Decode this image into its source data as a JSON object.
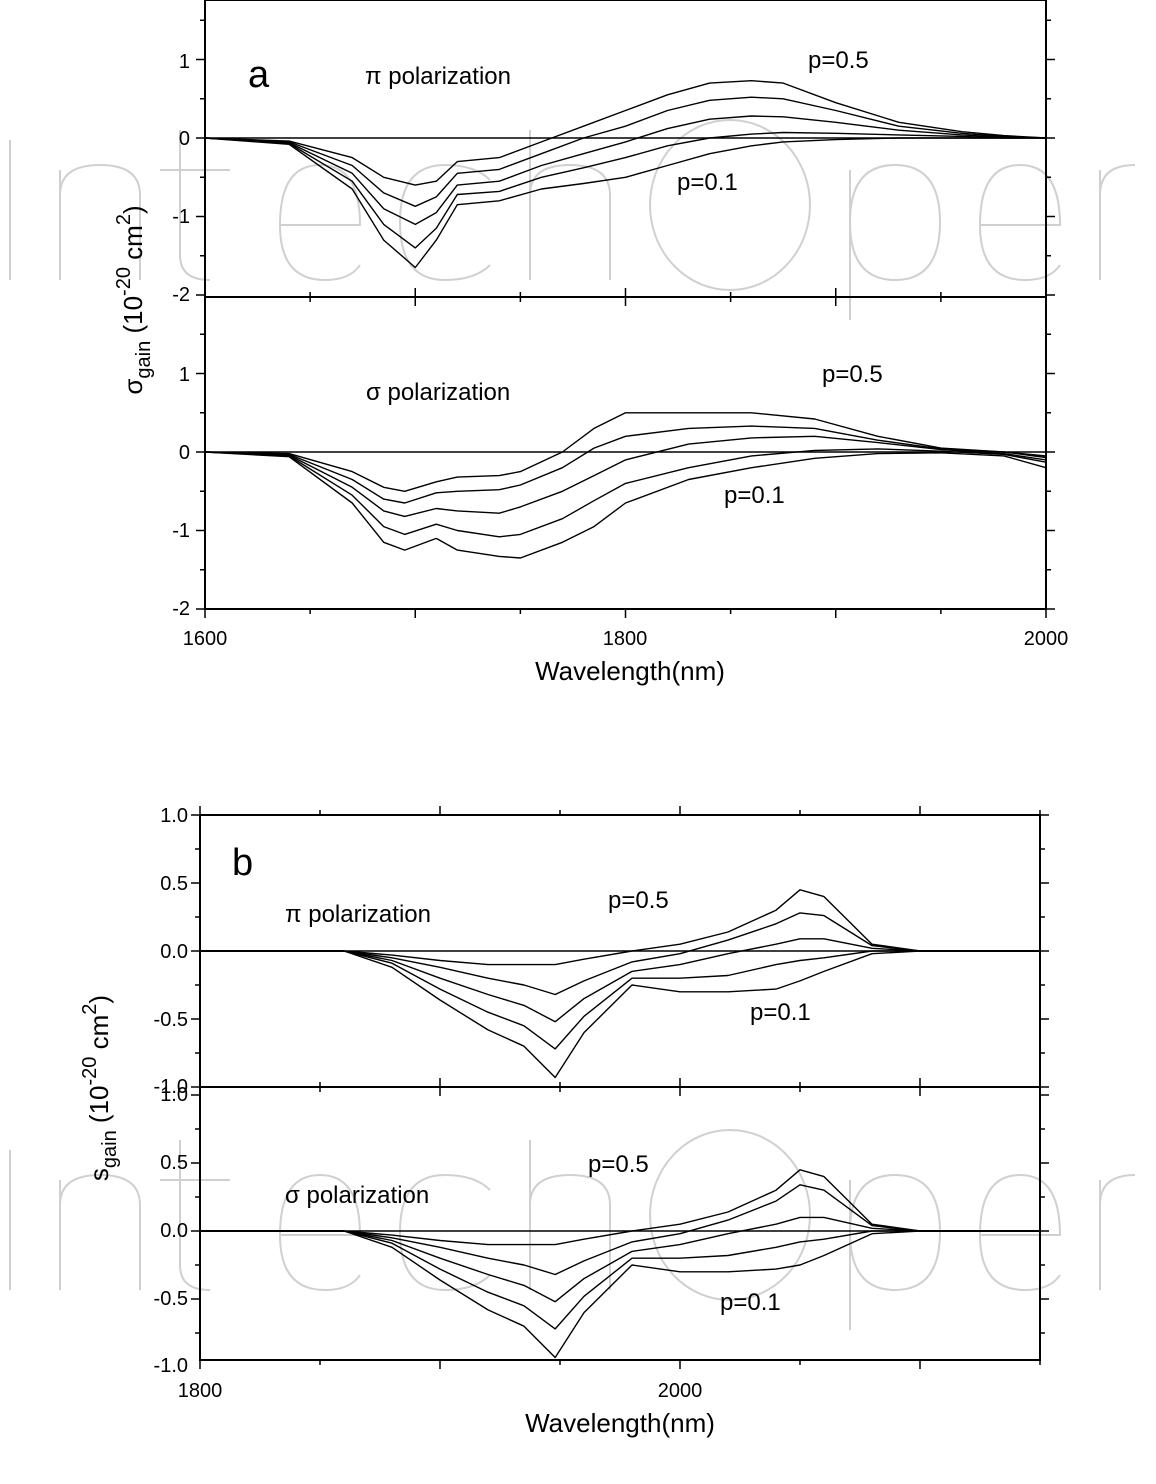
{
  "figure": {
    "watermark": "IntechOpen",
    "curve_color": "#000000"
  },
  "charts": [
    {
      "id": "a",
      "panel_letter": "a",
      "x_title": "Wavelength(nm)",
      "y_title_main": "σ",
      "y_title_sub": "gain",
      "y_title_unit": " (10",
      "y_title_exp": "-20",
      "y_title_unit2": " cm",
      "y_title_exp2": "2",
      "y_title_close": ")",
      "x_ticks": [
        "1600",
        "1800",
        "2000"
      ],
      "subplots": [
        {
          "polarization_symbol": "π",
          "polarization_label": "polarization",
          "label_top": "p=0.5",
          "label_bottom": "p=0.1",
          "y_ticks": [
            "1",
            "0",
            "-1",
            "-2"
          ]
        },
        {
          "polarization_symbol": "σ",
          "polarization_label": "polarization",
          "label_top": "p=0.5",
          "label_bottom": "p=0.1",
          "y_ticks": [
            "1",
            "0",
            "-1",
            "-2"
          ]
        }
      ]
    },
    {
      "id": "b",
      "panel_letter": "b",
      "x_title": "Wavelength(nm)",
      "y_title_main": "s",
      "y_title_sub": "gain",
      "y_title_unit": " (10",
      "y_title_exp": "-20",
      "y_title_unit2": " cm",
      "y_title_exp2": "2",
      "y_title_close": ")",
      "x_ticks": [
        "1800",
        "2000"
      ],
      "subplots": [
        {
          "polarization_symbol": "π",
          "polarization_label": "polarization",
          "label_top": "p=0.5",
          "label_bottom": "p=0.1",
          "y_ticks": [
            "1.0",
            "0.5",
            "0.0",
            "-0.5",
            "-1.0"
          ]
        },
        {
          "polarization_symbol": "σ",
          "polarization_label": "polarization",
          "label_top": "p=0.5",
          "label_bottom": "p=0.1",
          "y_ticks": [
            "1.0",
            "0.5",
            "0.0",
            "-0.5",
            "-1.0"
          ]
        }
      ]
    }
  ],
  "chart_data": [
    {
      "type": "line",
      "panel": "a",
      "subplot": "π polarization",
      "xlabel": "Wavelength(nm)",
      "ylabel": "σgain (10-20 cm2)",
      "xlim": [
        1600,
        2000
      ],
      "ylim": [
        -2,
        1.5
      ],
      "x": [
        1600,
        1640,
        1670,
        1685,
        1700,
        1710,
        1720,
        1740,
        1760,
        1780,
        1800,
        1820,
        1840,
        1860,
        1875,
        1900,
        1930,
        1960,
        1980,
        2000
      ],
      "series": [
        {
          "values": [
            0,
            -0.04,
            -0.25,
            -0.5,
            -0.6,
            -0.55,
            -0.3,
            -0.25,
            -0.05,
            0.15,
            0.35,
            0.55,
            0.7,
            0.73,
            0.7,
            0.45,
            0.2,
            0.08,
            0.03,
            0.0
          ]
        },
        {
          "values": [
            0,
            -0.05,
            -0.35,
            -0.7,
            -0.87,
            -0.75,
            -0.45,
            -0.4,
            -0.2,
            0.0,
            0.15,
            0.35,
            0.48,
            0.52,
            0.5,
            0.35,
            0.15,
            0.06,
            0.02,
            0.0
          ]
        },
        {
          "values": [
            0,
            -0.06,
            -0.45,
            -0.9,
            -1.1,
            -0.95,
            -0.6,
            -0.55,
            -0.35,
            -0.2,
            -0.05,
            0.12,
            0.24,
            0.28,
            0.27,
            0.2,
            0.1,
            0.04,
            0.01,
            0.0
          ]
        },
        {
          "values": [
            0,
            -0.07,
            -0.55,
            -1.1,
            -1.4,
            -1.15,
            -0.72,
            -0.68,
            -0.5,
            -0.38,
            -0.25,
            -0.1,
            0.0,
            0.05,
            0.07,
            0.06,
            0.04,
            0.02,
            0.0,
            0.0
          ]
        },
        {
          "values": [
            0,
            -0.08,
            -0.65,
            -1.3,
            -1.65,
            -1.3,
            -0.85,
            -0.8,
            -0.65,
            -0.58,
            -0.5,
            -0.35,
            -0.2,
            -0.1,
            -0.05,
            -0.02,
            0.0,
            0.0,
            0.0,
            0.0
          ]
        }
      ]
    },
    {
      "type": "line",
      "panel": "a",
      "subplot": "σ polarization",
      "xlabel": "Wavelength(nm)",
      "ylabel": "σgain (10-20 cm2)",
      "xlim": [
        1600,
        2000
      ],
      "ylim": [
        -2,
        1.5
      ],
      "x": [
        1600,
        1640,
        1670,
        1685,
        1695,
        1710,
        1720,
        1740,
        1750,
        1770,
        1785,
        1800,
        1830,
        1860,
        1890,
        1920,
        1950,
        1980,
        2000
      ],
      "series": [
        {
          "values": [
            0,
            -0.02,
            -0.25,
            -0.45,
            -0.5,
            -0.38,
            -0.32,
            -0.3,
            -0.25,
            0.0,
            0.3,
            0.5,
            0.5,
            0.5,
            0.42,
            0.2,
            0.05,
            0.0,
            -0.05
          ]
        },
        {
          "values": [
            0,
            -0.03,
            -0.35,
            -0.6,
            -0.65,
            -0.52,
            -0.5,
            -0.48,
            -0.42,
            -0.2,
            0.05,
            0.2,
            0.3,
            0.33,
            0.3,
            0.15,
            0.04,
            0.0,
            -0.07
          ]
        },
        {
          "values": [
            0,
            -0.04,
            -0.45,
            -0.75,
            -0.82,
            -0.72,
            -0.75,
            -0.78,
            -0.7,
            -0.5,
            -0.3,
            -0.1,
            0.1,
            0.18,
            0.2,
            0.12,
            0.03,
            -0.02,
            -0.1
          ]
        },
        {
          "values": [
            0,
            -0.05,
            -0.55,
            -0.95,
            -1.05,
            -0.92,
            -1.0,
            -1.08,
            -1.05,
            -0.85,
            -0.62,
            -0.4,
            -0.2,
            -0.05,
            0.02,
            0.04,
            0.01,
            -0.03,
            -0.13
          ]
        },
        {
          "values": [
            0,
            -0.06,
            -0.65,
            -1.15,
            -1.25,
            -1.1,
            -1.25,
            -1.33,
            -1.35,
            -1.15,
            -0.95,
            -0.65,
            -0.35,
            -0.2,
            -0.08,
            -0.02,
            -0.01,
            -0.05,
            -0.2
          ]
        }
      ]
    },
    {
      "type": "line",
      "panel": "b",
      "subplot": "π polarization",
      "xlabel": "Wavelength(nm)",
      "ylabel": "sgain (10-20 cm2)",
      "xlim": [
        1800,
        2150
      ],
      "ylim": [
        -1.0,
        1.0
      ],
      "x": [
        1800,
        1860,
        1880,
        1900,
        1920,
        1935,
        1948,
        1960,
        1980,
        2000,
        2020,
        2040,
        2050,
        2060,
        2080,
        2100,
        2150
      ],
      "series": [
        {
          "values": [
            0,
            0,
            -0.03,
            -0.07,
            -0.1,
            -0.1,
            -0.1,
            -0.06,
            0.0,
            0.05,
            0.14,
            0.3,
            0.45,
            0.4,
            0.05,
            0.0,
            0.0
          ]
        },
        {
          "values": [
            0,
            0,
            -0.05,
            -0.12,
            -0.2,
            -0.25,
            -0.32,
            -0.22,
            -0.08,
            -0.02,
            0.08,
            0.2,
            0.28,
            0.26,
            0.04,
            0.0,
            0.0
          ]
        },
        {
          "values": [
            0,
            0,
            -0.07,
            -0.2,
            -0.32,
            -0.4,
            -0.52,
            -0.35,
            -0.15,
            -0.1,
            -0.02,
            0.05,
            0.09,
            0.09,
            0.02,
            0.0,
            0.0
          ]
        },
        {
          "values": [
            0,
            0,
            -0.09,
            -0.28,
            -0.45,
            -0.55,
            -0.72,
            -0.48,
            -0.2,
            -0.2,
            -0.18,
            -0.1,
            -0.07,
            -0.05,
            0.0,
            0.0,
            0.0
          ]
        },
        {
          "values": [
            0,
            0,
            -0.12,
            -0.36,
            -0.58,
            -0.7,
            -0.93,
            -0.6,
            -0.25,
            -0.3,
            -0.3,
            -0.28,
            -0.22,
            -0.15,
            -0.02,
            0.0,
            0.0
          ]
        }
      ]
    },
    {
      "type": "line",
      "panel": "b",
      "subplot": "σ polarization",
      "xlabel": "Wavelength(nm)",
      "ylabel": "sgain (10-20 cm2)",
      "xlim": [
        1800,
        2150
      ],
      "ylim": [
        -1.0,
        1.0
      ],
      "x": [
        1800,
        1860,
        1880,
        1900,
        1920,
        1935,
        1948,
        1960,
        1980,
        2000,
        2020,
        2040,
        2050,
        2060,
        2080,
        2100,
        2150
      ],
      "series": [
        {
          "values": [
            0,
            0,
            -0.03,
            -0.07,
            -0.1,
            -0.1,
            -0.1,
            -0.06,
            0.0,
            0.05,
            0.14,
            0.3,
            0.45,
            0.4,
            0.05,
            0.0,
            0.0
          ]
        },
        {
          "values": [
            0,
            0,
            -0.05,
            -0.12,
            -0.2,
            -0.25,
            -0.32,
            -0.22,
            -0.08,
            -0.02,
            0.08,
            0.22,
            0.34,
            0.3,
            0.04,
            0.0,
            0.0
          ]
        },
        {
          "values": [
            0,
            0,
            -0.07,
            -0.2,
            -0.32,
            -0.4,
            -0.52,
            -0.35,
            -0.15,
            -0.1,
            -0.02,
            0.05,
            0.1,
            0.1,
            0.02,
            0.0,
            0.0
          ]
        },
        {
          "values": [
            0,
            0,
            -0.09,
            -0.28,
            -0.45,
            -0.55,
            -0.72,
            -0.48,
            -0.2,
            -0.2,
            -0.18,
            -0.12,
            -0.08,
            -0.06,
            0.0,
            0.0,
            0.0
          ]
        },
        {
          "values": [
            0,
            0,
            -0.12,
            -0.36,
            -0.58,
            -0.7,
            -0.93,
            -0.6,
            -0.25,
            -0.3,
            -0.3,
            -0.28,
            -0.25,
            -0.18,
            -0.02,
            0.0,
            0.0
          ]
        }
      ]
    }
  ]
}
